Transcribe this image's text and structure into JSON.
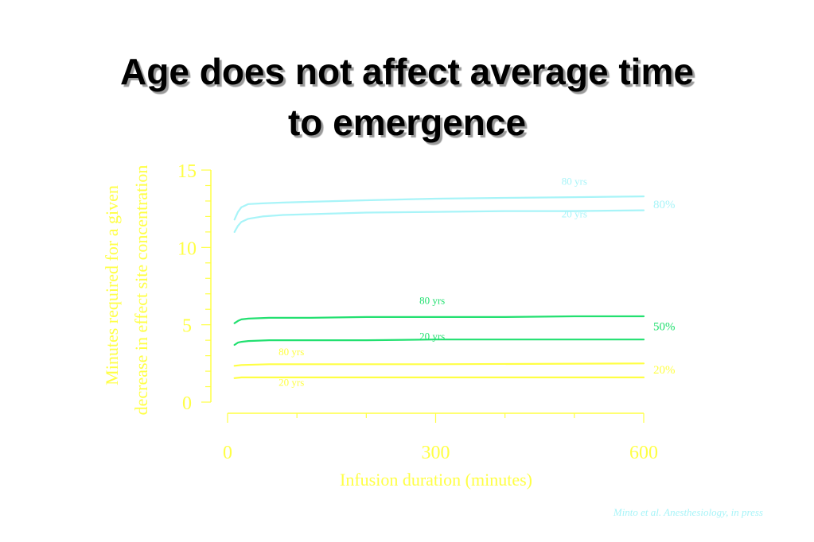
{
  "slide": {
    "title_line1": "Age does not affect average time",
    "title_line2": "to emergence",
    "citation": "Minto et al. Anesthesiology, in press"
  },
  "chart_data": {
    "type": "line",
    "title": "",
    "xlabel": "Infusion duration (minutes)",
    "ylabel_line1": "Minutes required for a given",
    "ylabel_line2": "decrease in effect site concentration",
    "xlim": [
      0,
      600
    ],
    "ylim": [
      0,
      15
    ],
    "x_ticks": [
      0,
      300,
      600
    ],
    "y_ticks": [
      0,
      5,
      10,
      15
    ],
    "grid": false,
    "colors": {
      "axis": "#ffff44",
      "c80": "#a8f4f8",
      "c50": "#22e070",
      "c20": "#ffff44"
    },
    "groups": [
      {
        "label": "80%",
        "color": "#a8f4f8",
        "label_y": 12.8
      },
      {
        "label": "50%",
        "color": "#22e070",
        "label_y": 4.9
      },
      {
        "label": "20%",
        "color": "#ffff44",
        "label_y": 2.1
      }
    ],
    "series": [
      {
        "name": "80 yrs",
        "group": "80%",
        "color": "#a8f4f8",
        "x": [
          10,
          15,
          20,
          30,
          50,
          80,
          120,
          200,
          300,
          400,
          500,
          600
        ],
        "y": [
          11.8,
          12.3,
          12.6,
          12.8,
          12.85,
          12.9,
          12.95,
          13.05,
          13.15,
          13.2,
          13.25,
          13.3
        ]
      },
      {
        "name": "20 yrs",
        "group": "80%",
        "color": "#a8f4f8",
        "x": [
          10,
          15,
          20,
          30,
          50,
          80,
          120,
          200,
          300,
          400,
          500,
          600
        ],
        "y": [
          11.0,
          11.4,
          11.65,
          11.85,
          12.0,
          12.1,
          12.15,
          12.25,
          12.3,
          12.35,
          12.35,
          12.4
        ]
      },
      {
        "name": "80 yrs",
        "group": "50%",
        "color": "#22e070",
        "x": [
          10,
          15,
          20,
          30,
          60,
          120,
          200,
          300,
          400,
          500,
          600
        ],
        "y": [
          5.1,
          5.25,
          5.35,
          5.4,
          5.45,
          5.45,
          5.5,
          5.5,
          5.5,
          5.55,
          5.55
        ]
      },
      {
        "name": "20 yrs",
        "group": "50%",
        "color": "#22e070",
        "x": [
          10,
          15,
          20,
          30,
          60,
          120,
          200,
          300,
          400,
          500,
          600
        ],
        "y": [
          3.7,
          3.85,
          3.9,
          3.95,
          4.0,
          4.0,
          4.0,
          4.05,
          4.05,
          4.05,
          4.05
        ]
      },
      {
        "name": "80 yrs",
        "group": "20%",
        "color": "#ffff44",
        "x": [
          10,
          20,
          60,
          120,
          300,
          600
        ],
        "y": [
          2.35,
          2.4,
          2.45,
          2.45,
          2.45,
          2.5
        ]
      },
      {
        "name": "20 yrs",
        "group": "20%",
        "color": "#ffff44",
        "x": [
          10,
          20,
          60,
          120,
          300,
          600
        ],
        "y": [
          1.55,
          1.6,
          1.6,
          1.6,
          1.6,
          1.6
        ]
      }
    ],
    "series_labels": [
      {
        "text": "80 yrs",
        "color": "#a8f4f8",
        "x": 500,
        "y": 14.3
      },
      {
        "text": "20 yrs",
        "color": "#a8f4f8",
        "x": 500,
        "y": 12.2
      },
      {
        "text": "80 yrs",
        "color": "#22e070",
        "x": 295,
        "y": 6.6
      },
      {
        "text": "20 yrs",
        "color": "#22e070",
        "x": 295,
        "y": 4.3
      },
      {
        "text": "80 yrs",
        "color": "#ffff44",
        "x": 92,
        "y": 3.3
      },
      {
        "text": "20 yrs",
        "color": "#ffff44",
        "x": 92,
        "y": 1.3
      }
    ]
  }
}
